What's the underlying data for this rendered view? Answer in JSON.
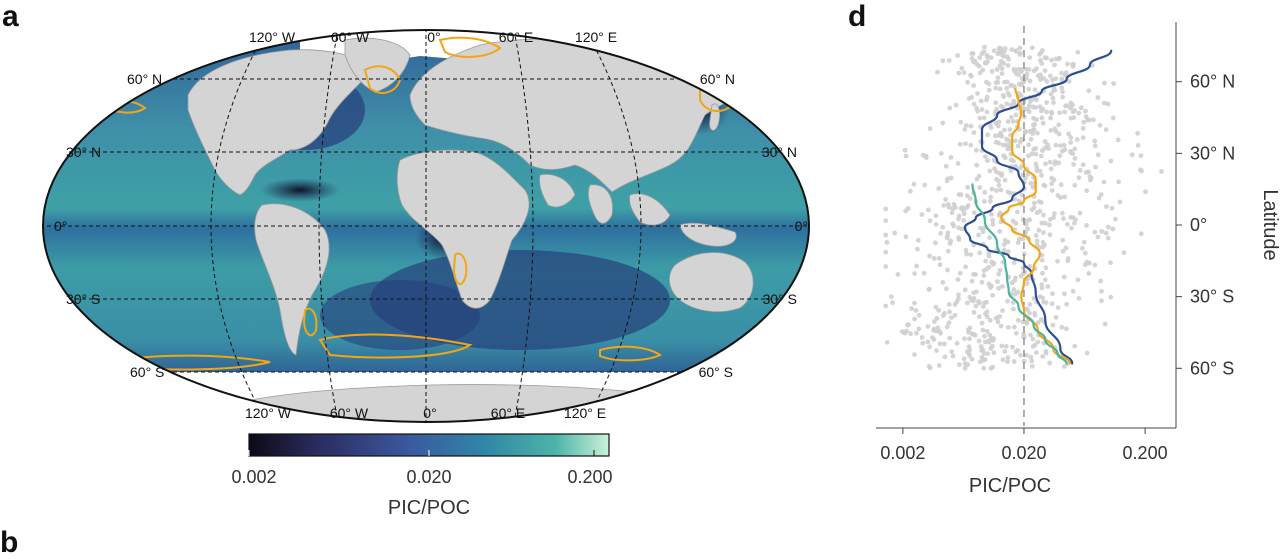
{
  "figure": {
    "panel_a_label": "a",
    "panel_d_label": "d",
    "panel_next_label": "b"
  },
  "map": {
    "top_lon_labels": [
      "120° W",
      "60° W",
      "0°",
      "60° E",
      "120° E"
    ],
    "bottom_lon_labels": [
      "120° W",
      "60° W",
      "0°",
      "60° E",
      "120° E"
    ],
    "lat_labels_left": [
      "60° N",
      "30° N",
      "0°",
      "30° S",
      "60° S"
    ],
    "lat_labels_right": [
      "60° N",
      "30° N",
      "0°",
      "30° S",
      "60° S"
    ],
    "colorbar": {
      "ticks": [
        "0.002",
        "0.020",
        "0.200"
      ],
      "label": "PIC/POC",
      "colors": [
        "#0b0a14",
        "#2a2a5c",
        "#3b5aa0",
        "#2f86a6",
        "#4db3a8",
        "#c9f2d9"
      ]
    },
    "colors": {
      "ocean_mid": "#2f7fa6",
      "ocean_dark": "#23356e",
      "ocean_light": "#3fa3a8",
      "land": "#d4d4d4",
      "contour": "#f2a516"
    }
  },
  "chart_data": {
    "type": "line",
    "xlabel": "PIC/POC",
    "ylabel": "Latitude",
    "xscale": "log",
    "xlim": [
      0.0012,
      0.36
    ],
    "ylim": [
      -85,
      85
    ],
    "xticks": [
      0.002,
      0.02,
      0.2
    ],
    "xtick_labels": [
      "0.002",
      "0.020",
      "0.200"
    ],
    "yticks": [
      60,
      30,
      0,
      -30,
      -60
    ],
    "ytick_labels": [
      "60° N",
      "30° N",
      "0°",
      "30° S",
      "60° S"
    ],
    "reference_line_x": 0.02,
    "background_scatter_color": "#cfcfcf",
    "series": [
      {
        "color": "#2c4f93",
        "x": [
          0.105,
          0.07,
          0.045,
          0.028,
          0.018,
          0.012,
          0.009,
          0.009,
          0.012,
          0.018,
          0.02,
          0.016,
          0.011,
          0.008,
          0.0065,
          0.0072,
          0.01,
          0.015,
          0.02,
          0.023,
          0.025,
          0.03,
          0.04,
          0.05
        ],
        "y": [
          73,
          67,
          61,
          56,
          51,
          46,
          40,
          33,
          27,
          22,
          16,
          11,
          7,
          3,
          -1,
          -6,
          -10,
          -13,
          -16,
          -20,
          -28,
          -40,
          -52,
          -58
        ]
      },
      {
        "color": "#f2a516",
        "x": [
          0.017,
          0.018,
          0.019,
          0.018,
          0.016,
          0.016,
          0.02,
          0.025,
          0.025,
          0.02,
          0.015,
          0.013,
          0.016,
          0.022,
          0.027,
          0.024,
          0.02,
          0.019,
          0.02,
          0.026,
          0.035,
          0.048
        ],
        "y": [
          57,
          52,
          47,
          42,
          37,
          31,
          25,
          19,
          14,
          10,
          7,
          3,
          -2,
          -6,
          -12,
          -18,
          -24,
          -30,
          -36,
          -44,
          -52,
          -58
        ]
      },
      {
        "color": "#4ab59c",
        "x": [
          0.0075,
          0.008,
          0.0095,
          0.012,
          0.014,
          0.0145,
          0.015,
          0.018,
          0.024,
          0.03,
          0.038,
          0.045
        ],
        "y": [
          17,
          10,
          2,
          -8,
          -16,
          -22,
          -28,
          -34,
          -42,
          -48,
          -54,
          -58
        ]
      }
    ]
  }
}
